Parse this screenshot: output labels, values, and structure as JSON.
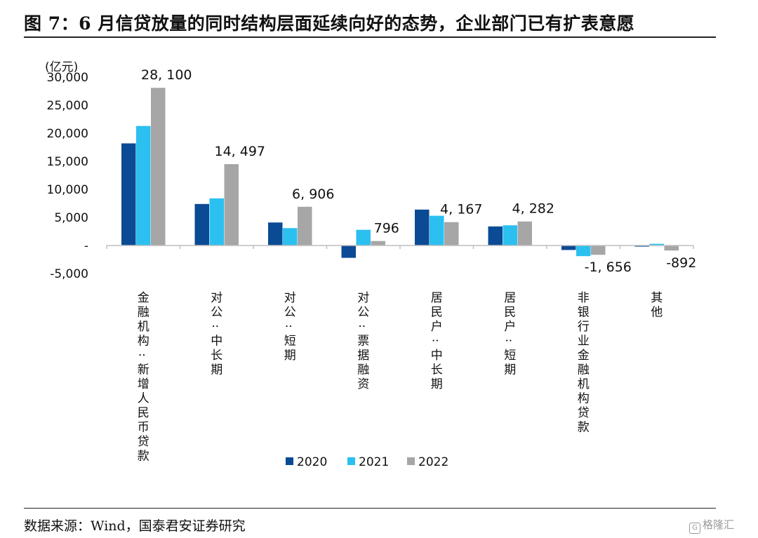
{
  "figure": {
    "title": "图 7：6 月信贷放量的同时结构层面延续向好的态势，企业部门已有扩表意愿",
    "source": "数据来源：Wind，国泰君安证券研究",
    "watermark": "格隆汇"
  },
  "chart_data": {
    "type": "bar",
    "ylabel": "(亿元)",
    "ylim": [
      -5000,
      30000
    ],
    "yticks": [
      -5000,
      0,
      5000,
      10000,
      15000,
      20000,
      25000,
      30000
    ],
    "ytick_labels": [
      "-5,000",
      "-",
      "5,000",
      "10,000",
      "15,000",
      "20,000",
      "25,000",
      "30,000"
    ],
    "categories": [
      "金融机构:新增人民币贷款",
      "对公:中长期",
      "对公:短期",
      "对公:票据融资",
      "居民户:中长期",
      "居民户:短期",
      "非银行业金融机构贷款",
      "其他"
    ],
    "series": [
      {
        "name": "2020",
        "color": "#0b4a94",
        "values": [
          18200,
          7400,
          4100,
          -2200,
          6400,
          3400,
          -800,
          -200
        ]
      },
      {
        "name": "2021",
        "color": "#2bc0f0",
        "values": [
          21300,
          8400,
          3100,
          2800,
          5300,
          3600,
          -1900,
          300
        ]
      },
      {
        "name": "2022",
        "color": "#a6a6a6",
        "values": [
          28100,
          14497,
          6906,
          796,
          4167,
          4282,
          -1656,
          -892
        ]
      }
    ],
    "data_labels": [
      "28, 100",
      "14, 497",
      "6, 906",
      "796",
      "4, 167",
      "4, 282",
      "-1, 656",
      "-892"
    ],
    "legend_position": "bottom",
    "grid": false
  }
}
